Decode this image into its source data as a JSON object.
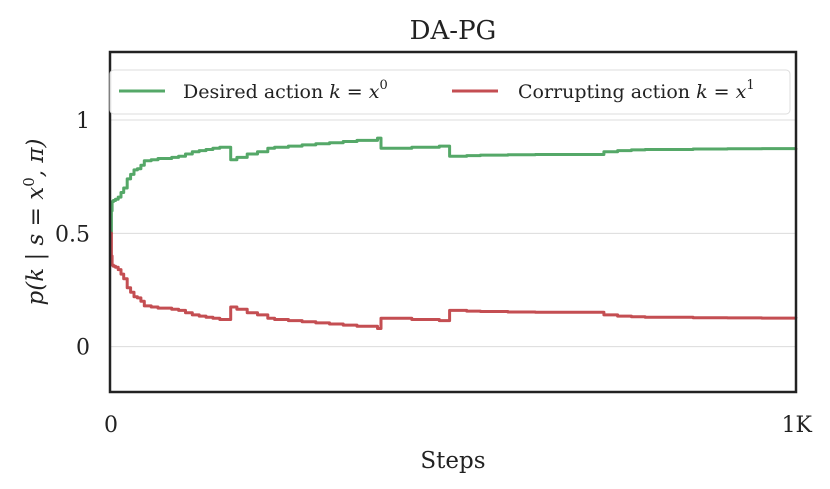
{
  "chart_data": {
    "type": "line",
    "title": "DA-PG",
    "xlabel": "Steps",
    "ylabel": {
      "lead": "p(k",
      "bar": "|",
      "cond": "s = x",
      "sup": "0",
      "tail": ", π)"
    },
    "xlim": [
      0,
      1000
    ],
    "ylim": [
      -0.2,
      1.3
    ],
    "x_ticks": [
      {
        "value": 0,
        "label": "0"
      },
      {
        "value": 1000,
        "label": "1K"
      }
    ],
    "y_ticks": [
      {
        "value": 0,
        "label": "0"
      },
      {
        "value": 0.5,
        "label": "0.5"
      },
      {
        "value": 1,
        "label": "1"
      }
    ],
    "grid": true,
    "legend_position": "top",
    "series": [
      {
        "name": "Desired action k = x^0",
        "legend": {
          "text": "Desired action",
          "math": "k = x",
          "sup": "0"
        },
        "color": "#55a868",
        "x": [
          0,
          2,
          3,
          5,
          8,
          12,
          16,
          20,
          25,
          30,
          35,
          40,
          45,
          50,
          60,
          70,
          80,
          90,
          100,
          110,
          120,
          130,
          140,
          150,
          160,
          170,
          175,
          176,
          185,
          200,
          215,
          230,
          240,
          260,
          280,
          300,
          320,
          340,
          360,
          390,
          395,
          400,
          420,
          440,
          460,
          480,
          490,
          495,
          500,
          520,
          540,
          560,
          580,
          600,
          620,
          640,
          660,
          680,
          700,
          720,
          740,
          760,
          780,
          800,
          850,
          900,
          950,
          1000
        ],
        "values": [
          0.5,
          0.6,
          0.64,
          0.645,
          0.65,
          0.66,
          0.68,
          0.7,
          0.74,
          0.76,
          0.78,
          0.785,
          0.8,
          0.82,
          0.825,
          0.83,
          0.83,
          0.835,
          0.84,
          0.85,
          0.86,
          0.865,
          0.87,
          0.875,
          0.88,
          0.88,
          0.88,
          0.825,
          0.835,
          0.85,
          0.86,
          0.875,
          0.88,
          0.885,
          0.89,
          0.895,
          0.9,
          0.905,
          0.91,
          0.92,
          0.875,
          0.875,
          0.875,
          0.88,
          0.88,
          0.885,
          0.885,
          0.84,
          0.84,
          0.843,
          0.845,
          0.845,
          0.847,
          0.847,
          0.848,
          0.848,
          0.848,
          0.848,
          0.848,
          0.86,
          0.865,
          0.868,
          0.87,
          0.87,
          0.872,
          0.873,
          0.874,
          0.875
        ]
      },
      {
        "name": "Corrupting action k = x^1",
        "legend": {
          "text": "Corrupting action",
          "math": "k = x",
          "sup": "1"
        },
        "color": "#c44e52",
        "x": [
          0,
          2,
          3,
          5,
          8,
          12,
          16,
          20,
          25,
          30,
          35,
          40,
          45,
          50,
          60,
          70,
          80,
          90,
          100,
          110,
          120,
          130,
          140,
          150,
          160,
          170,
          175,
          176,
          185,
          200,
          215,
          230,
          240,
          260,
          280,
          300,
          320,
          340,
          360,
          390,
          395,
          400,
          420,
          440,
          460,
          480,
          490,
          495,
          500,
          520,
          540,
          560,
          580,
          600,
          620,
          640,
          660,
          680,
          700,
          720,
          740,
          760,
          780,
          800,
          850,
          900,
          950,
          1000
        ],
        "values": [
          0.5,
          0.4,
          0.36,
          0.355,
          0.35,
          0.34,
          0.32,
          0.3,
          0.26,
          0.24,
          0.22,
          0.215,
          0.2,
          0.18,
          0.175,
          0.17,
          0.17,
          0.165,
          0.16,
          0.15,
          0.14,
          0.135,
          0.13,
          0.125,
          0.12,
          0.12,
          0.12,
          0.175,
          0.165,
          0.15,
          0.14,
          0.125,
          0.12,
          0.115,
          0.11,
          0.105,
          0.1,
          0.095,
          0.09,
          0.08,
          0.125,
          0.125,
          0.125,
          0.12,
          0.12,
          0.115,
          0.115,
          0.16,
          0.16,
          0.157,
          0.155,
          0.155,
          0.153,
          0.153,
          0.152,
          0.152,
          0.152,
          0.152,
          0.152,
          0.14,
          0.135,
          0.132,
          0.13,
          0.13,
          0.128,
          0.127,
          0.126,
          0.125
        ]
      }
    ]
  }
}
